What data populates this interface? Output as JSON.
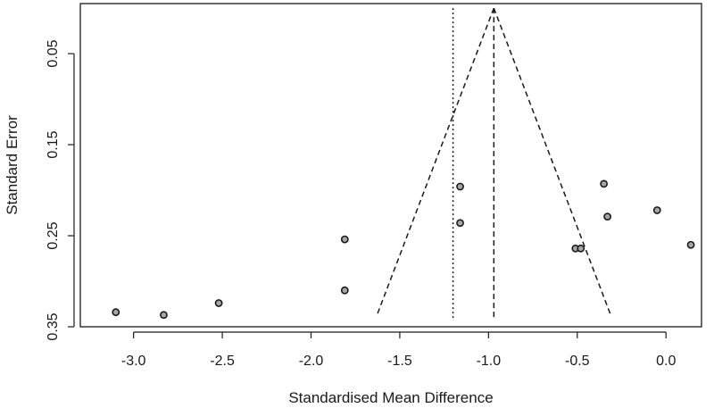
{
  "chart_data": {
    "type": "scatter",
    "subtype": "funnel-plot",
    "title": "",
    "xlabel": "Standardised Mean Difference",
    "ylabel": "Standard Error",
    "xlim": [
      -3.3,
      0.2
    ],
    "ylim": [
      0.35,
      -0.005
    ],
    "y_reversed": true,
    "grid": false,
    "xticks": [
      {
        "value": -3.0,
        "label": "-3.0"
      },
      {
        "value": -2.5,
        "label": "-2.5"
      },
      {
        "value": -2.0,
        "label": "-2.0"
      },
      {
        "value": -1.5,
        "label": "-1.5"
      },
      {
        "value": -1.0,
        "label": "-1.0"
      },
      {
        "value": -0.5,
        "label": "-0.5"
      },
      {
        "value": 0.0,
        "label": "0.0"
      }
    ],
    "yticks": [
      {
        "value": 0.05,
        "label": "0.05"
      },
      {
        "value": 0.15,
        "label": "0.15"
      },
      {
        "value": 0.25,
        "label": "0.25"
      },
      {
        "value": 0.35,
        "label": "0.35"
      }
    ],
    "points": [
      {
        "x": -3.1,
        "y": 0.334
      },
      {
        "x": -2.83,
        "y": 0.337
      },
      {
        "x": -2.52,
        "y": 0.324
      },
      {
        "x": -1.81,
        "y": 0.254
      },
      {
        "x": -1.81,
        "y": 0.31
      },
      {
        "x": -1.16,
        "y": 0.196
      },
      {
        "x": -1.16,
        "y": 0.236
      },
      {
        "x": -0.51,
        "y": 0.264
      },
      {
        "x": -0.48,
        "y": 0.264
      },
      {
        "x": -0.35,
        "y": 0.193
      },
      {
        "x": -0.33,
        "y": 0.229
      },
      {
        "x": -0.05,
        "y": 0.222
      },
      {
        "x": 0.14,
        "y": 0.26
      }
    ],
    "pooled_estimate": -0.97,
    "reference_line": -1.2,
    "funnel": {
      "apex": {
        "x": -0.97,
        "y": 0.0
      },
      "base_left": {
        "x": -1.63,
        "y": 0.338
      },
      "base_right": {
        "x": -0.31,
        "y": 0.338
      }
    },
    "colors": {
      "point_fill": "#a6a6a6",
      "point_stroke": "#1a1a1a",
      "axis": "#1a1a1a"
    }
  }
}
